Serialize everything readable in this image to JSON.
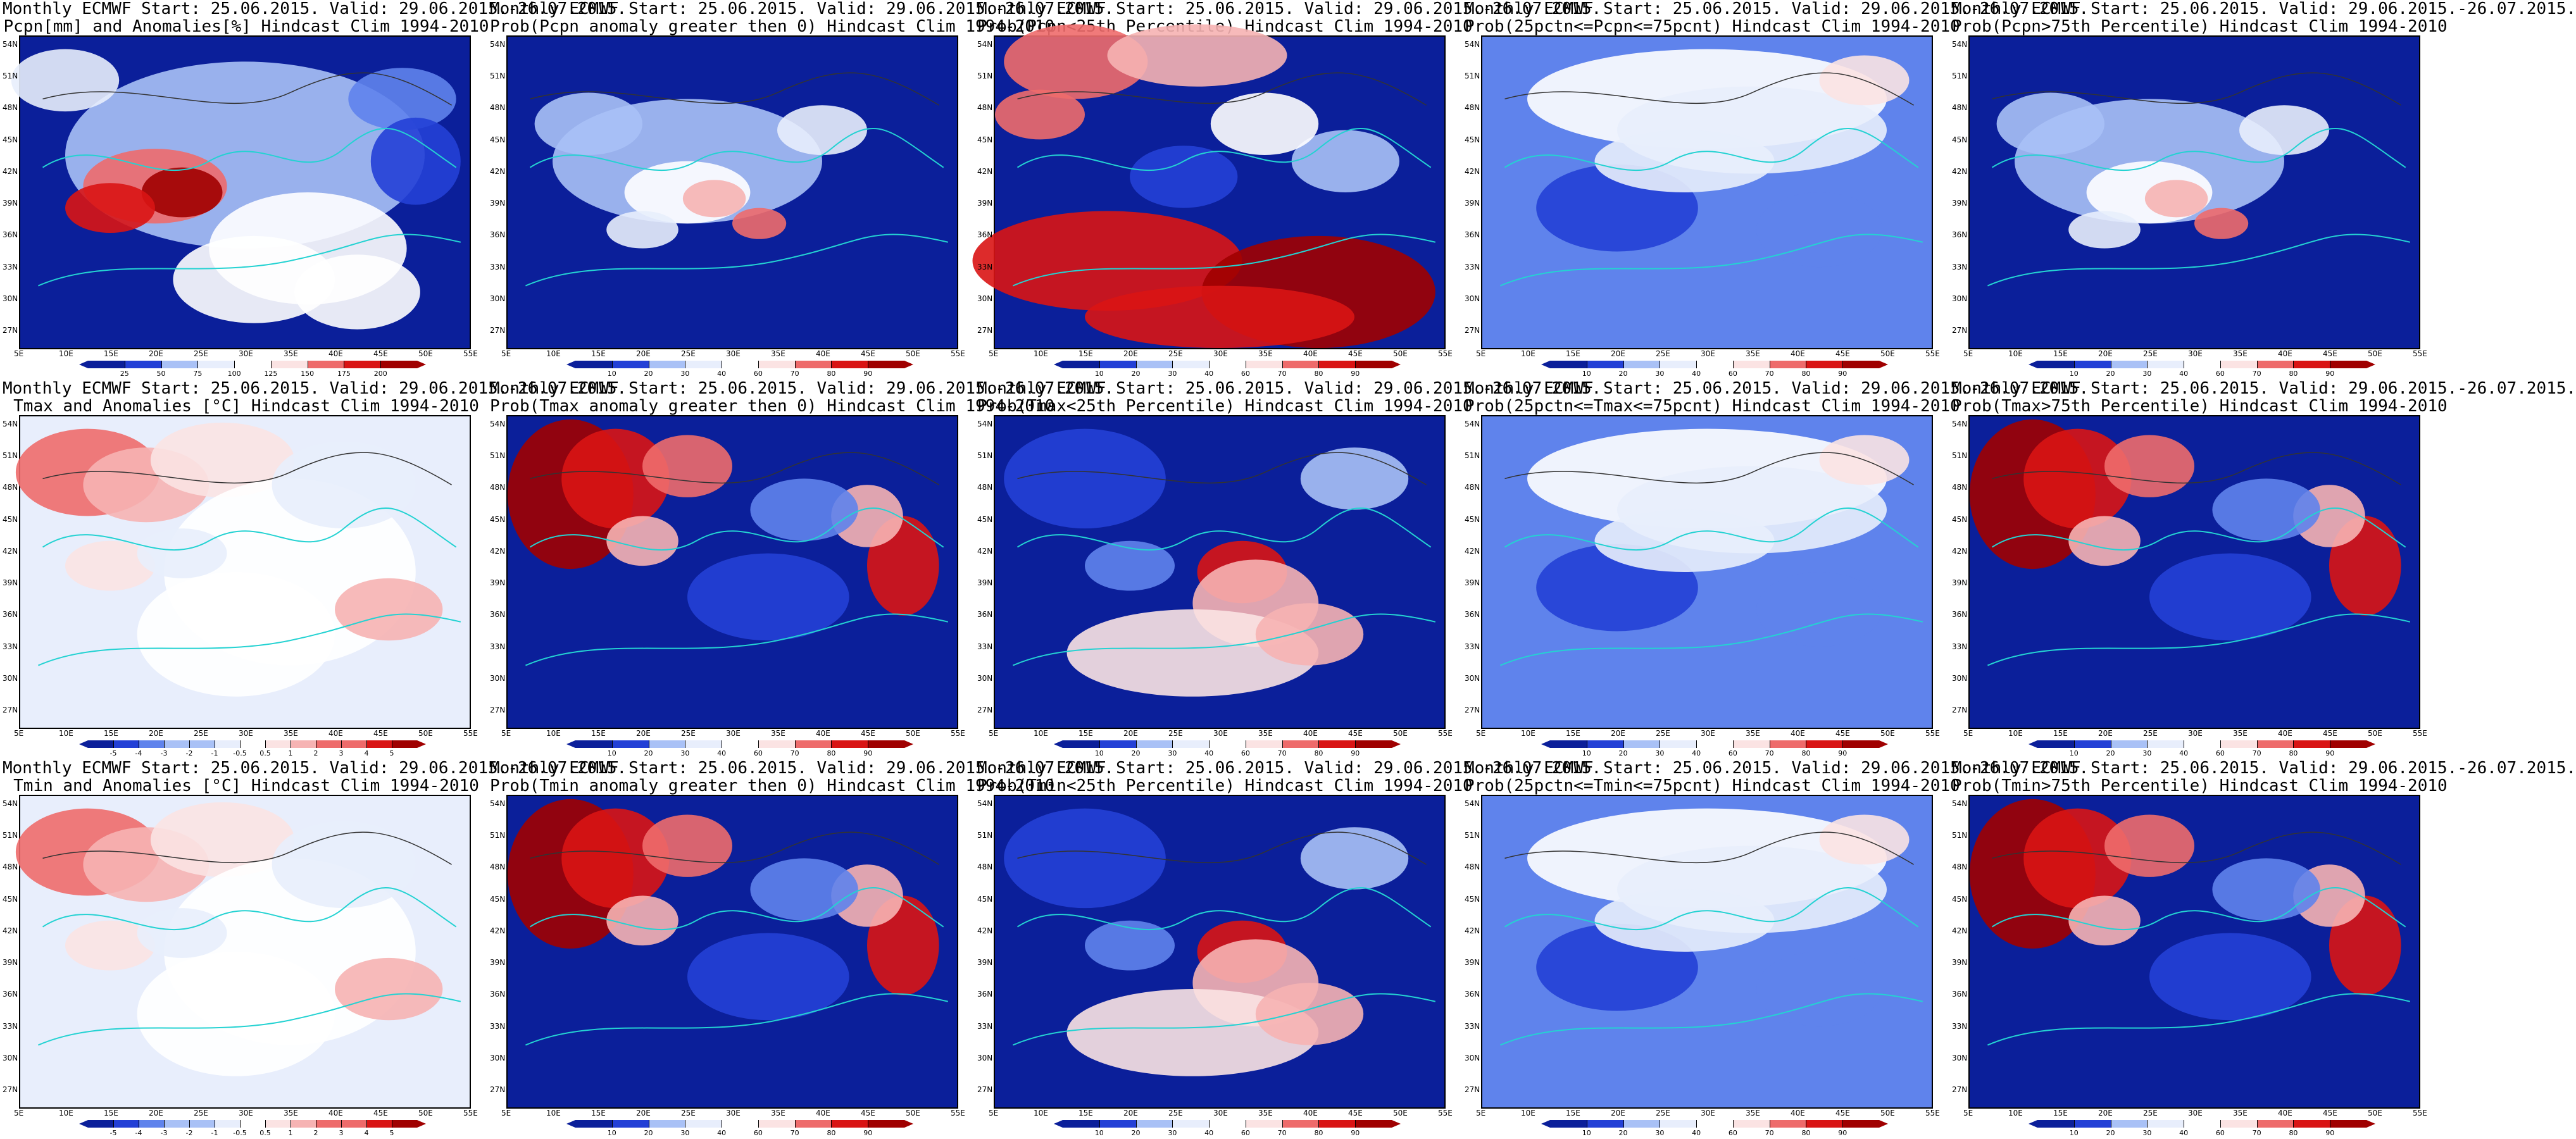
{
  "lat_ticks": [
    "54N",
    "51N",
    "48N",
    "45N",
    "42N",
    "39N",
    "36N",
    "33N",
    "30N",
    "27N"
  ],
  "lon_ticks": [
    "5E",
    "10E",
    "15E",
    "20E",
    "25E",
    "30E",
    "35E",
    "40E",
    "45E",
    "50E",
    "55E"
  ],
  "ramp_blue_red": [
    "#0b1f9a",
    "#2340d6",
    "#5f83ec",
    "#a9c1f6",
    "#e8eefc",
    "#ffffff",
    "#fbe3e3",
    "#f6b3b3",
    "#ee6b6b",
    "#d91414",
    "#a00000"
  ],
  "ramp_pcpn": [
    "#0b1f9a",
    "#2340d6",
    "#5f83ec",
    "#a9c1f6",
    "#e8eefc",
    "#ffffff",
    "#fbe3e3",
    "#f6b3b3",
    "#ee6b6b",
    "#d91414",
    "#a00000"
  ],
  "panels": [
    {
      "row": 0,
      "col": 0,
      "line1": "Monthly ECMWF Start: 25.06.2015. Valid: 29.06.2015.-26.07.2015.",
      "line2": "Pcpn[mm] and Anomalies[%] Hindcast Clim 1994-2010",
      "cbar": [
        "25",
        "50",
        "75",
        "100",
        "125",
        "150",
        "175",
        "200"
      ],
      "kind": "pcpn"
    },
    {
      "row": 0,
      "col": 1,
      "line1": "Monthly ECMWF Start: 25.06.2015. Valid: 29.06.2015.-26.07.2015.",
      "line2": "Prob(Pcpn anomaly greater then 0) Hindcast Clim 1994-2010",
      "cbar": [
        "10",
        "20",
        "30",
        "40",
        "60",
        "70",
        "80",
        "90"
      ],
      "kind": "prob_blue"
    },
    {
      "row": 0,
      "col": 2,
      "line1": "Monthly ECMWF Start: 25.06.2015. Valid: 29.06.2015.-26.07.2015.",
      "line2": "Prob(Pcpn<25th Percentile) Hindcast Clim 1994-2010",
      "cbar": [
        "10",
        "20",
        "30",
        "40",
        "60",
        "70",
        "80",
        "90"
      ],
      "kind": "prob_red_south"
    },
    {
      "row": 0,
      "col": 3,
      "line1": "Monthly ECMWF Start: 25.06.2015. Valid: 29.06.2015.-26.07.2015.",
      "line2": "Prob(25pctn<=Pcpn<=75pcnt) Hindcast Clim 1994-2010",
      "cbar": [
        "10",
        "20",
        "30",
        "40",
        "60",
        "70",
        "80",
        "90"
      ],
      "kind": "prob_mid"
    },
    {
      "row": 0,
      "col": 4,
      "line1": "Monthly ECMWF Start: 25.06.2015. Valid: 29.06.2015.-26.07.2015.",
      "line2": "Prob(Pcpn>75th Percentile) Hindcast Clim 1994-2010",
      "cbar": [
        "10",
        "20",
        "30",
        "40",
        "60",
        "70",
        "80",
        "90"
      ],
      "kind": "prob_blue"
    },
    {
      "row": 1,
      "col": 0,
      "line1": "Monthly ECMWF Start: 25.06.2015. Valid: 29.06.2015.-26.07.2015.",
      "line2": "Tmax and Anomalies [°C] Hindcast Clim 1994-2010",
      "cbar": [
        "-5",
        "-4",
        "-3",
        "-2",
        "-1",
        "-0.5",
        "0.5",
        "1",
        "2",
        "3",
        "4",
        "5"
      ],
      "kind": "anom_warm_nw"
    },
    {
      "row": 1,
      "col": 1,
      "line1": "Monthly ECMWF Start: 25.06.2015. Valid: 29.06.2015.-26.07.2015.",
      "line2": "Prob(Tmax anomaly greater then 0) Hindcast Clim 1994-2010",
      "cbar": [
        "10",
        "20",
        "30",
        "40",
        "60",
        "70",
        "80",
        "90"
      ],
      "kind": "prob_warm_nw"
    },
    {
      "row": 1,
      "col": 2,
      "line1": "Monthly ECMWF Start: 25.06.2015. Valid: 29.06.2015.-26.07.2015.",
      "line2": "Prob(Tmax<25th Percentile) Hindcast Clim 1994-2010",
      "cbar": [
        "10",
        "20",
        "30",
        "40",
        "60",
        "70",
        "80",
        "90"
      ],
      "kind": "prob_cold_nw"
    },
    {
      "row": 1,
      "col": 3,
      "line1": "Monthly ECMWF Start: 25.06.2015. Valid: 29.06.2015.-26.07.2015.",
      "line2": "Prob(25pctn<=Tmax<=75pcnt) Hindcast Clim 1994-2010",
      "cbar": [
        "10",
        "20",
        "30",
        "40",
        "60",
        "70",
        "80",
        "90"
      ],
      "kind": "prob_mid"
    },
    {
      "row": 1,
      "col": 4,
      "line1": "Monthly ECMWF Start: 25.06.2015. Valid: 29.06.2015.-26.07.2015.",
      "line2": "Prob(Tmax>75th Percentile) Hindcast Clim 1994-2010",
      "cbar": [
        "10",
        "20",
        "30",
        "40",
        "60",
        "70",
        "80",
        "90"
      ],
      "kind": "prob_warm_nw"
    },
    {
      "row": 2,
      "col": 0,
      "line1": "Monthly ECMWF Start: 25.06.2015. Valid: 29.06.2015.-26.07.2015.",
      "line2": "Tmin and Anomalies [°C] Hindcast Clim 1994-2010",
      "cbar": [
        "-5",
        "-4",
        "-3",
        "-2",
        "-1",
        "-0.5",
        "0.5",
        "1",
        "2",
        "3",
        "4",
        "5"
      ],
      "kind": "anom_warm_nw"
    },
    {
      "row": 2,
      "col": 1,
      "line1": "Monthly ECMWF Start: 25.06.2015. Valid: 29.06.2015.-26.07.2015.",
      "line2": "Prob(Tmin anomaly greater then 0) Hindcast Clim 1994-2010",
      "cbar": [
        "10",
        "20",
        "30",
        "40",
        "60",
        "70",
        "80",
        "90"
      ],
      "kind": "prob_warm_nw"
    },
    {
      "row": 2,
      "col": 2,
      "line1": "Monthly ECMWF Start: 25.06.2015. Valid: 29.06.2015.-26.07.2015.",
      "line2": "Prob(Tmin<25th Percentile) Hindcast Clim 1994-2010",
      "cbar": [
        "10",
        "20",
        "30",
        "40",
        "60",
        "70",
        "80",
        "90"
      ],
      "kind": "prob_cold_nw"
    },
    {
      "row": 2,
      "col": 3,
      "line1": "Monthly ECMWF Start: 25.06.2015. Valid: 29.06.2015.-26.07.2015.",
      "line2": "Prob(25pctn<=Tmin<=75pcnt) Hindcast Clim 1994-2010",
      "cbar": [
        "10",
        "20",
        "30",
        "40",
        "60",
        "70",
        "80",
        "90"
      ],
      "kind": "prob_mid"
    },
    {
      "row": 2,
      "col": 4,
      "line1": "Monthly ECMWF Start: 25.06.2015. Valid: 29.06.2015.-26.07.2015.",
      "line2": "Prob(Tmin>75th Percentile) Hindcast Clim 1994-2010",
      "cbar": [
        "10",
        "20",
        "30",
        "40",
        "60",
        "70",
        "80",
        "90"
      ],
      "kind": "prob_warm_nw"
    }
  ]
}
